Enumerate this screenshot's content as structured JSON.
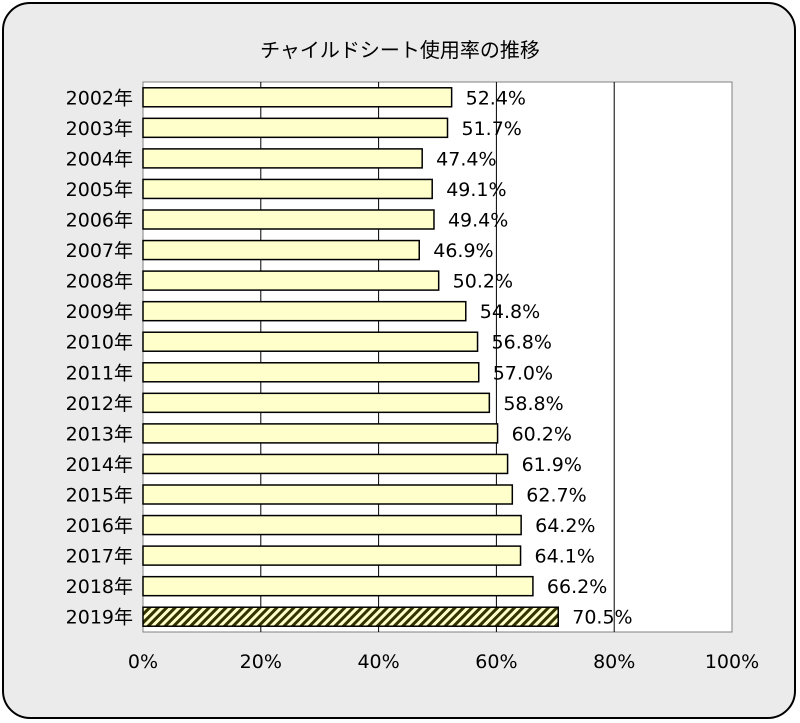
{
  "chart_data": {
    "type": "bar",
    "orientation": "horizontal",
    "title": "チャイルドシート使用率の推移",
    "categories": [
      "2002年",
      "2003年",
      "2004年",
      "2005年",
      "2006年",
      "2007年",
      "2008年",
      "2009年",
      "2010年",
      "2011年",
      "2012年",
      "2013年",
      "2014年",
      "2015年",
      "2016年",
      "2017年",
      "2018年",
      "2019年"
    ],
    "values": [
      52.4,
      51.7,
      47.4,
      49.1,
      49.4,
      46.9,
      50.2,
      54.8,
      56.8,
      57.0,
      58.8,
      60.2,
      61.9,
      62.7,
      64.2,
      64.1,
      66.2,
      70.5
    ],
    "value_labels": [
      "52.4%",
      "51.7%",
      "47.4%",
      "49.1%",
      "49.4%",
      "46.9%",
      "50.2%",
      "54.8%",
      "56.8%",
      "57.0%",
      "58.8%",
      "60.2%",
      "61.9%",
      "62.7%",
      "64.2%",
      "64.1%",
      "66.2%",
      "70.5%"
    ],
    "xlim": [
      0,
      100
    ],
    "x_ticks": [
      "0%",
      "20%",
      "40%",
      "60%",
      "80%",
      "100%"
    ],
    "grid": true,
    "highlighted_category": "2019年",
    "colors": {
      "bar_fill": "#ffffcc",
      "bar_outline": "#000000",
      "highlight_bar": "#333300",
      "frame_background": "#ebebeb",
      "plot_background": "#ffffff"
    }
  }
}
